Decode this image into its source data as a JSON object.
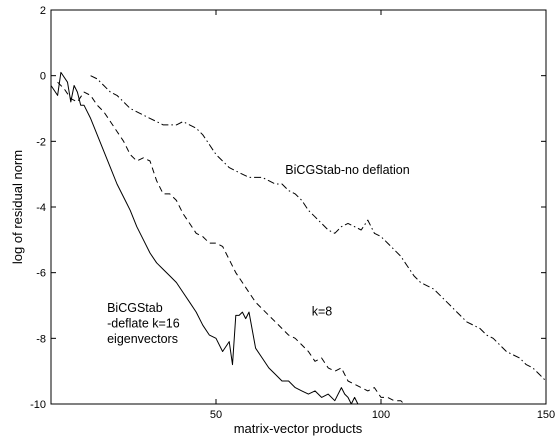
{
  "chart_data": {
    "type": "line",
    "title": "",
    "xlabel": "matrix-vector products",
    "ylabel": "log of residual norm",
    "xlim": [
      0,
      150
    ],
    "ylim": [
      -10,
      2
    ],
    "xticks": [
      "50",
      "100",
      "150"
    ],
    "yticks": [
      "2",
      "0",
      "-2",
      "-4",
      "-6",
      "-8",
      "-10"
    ],
    "grid": false,
    "legend": "none",
    "series": [
      {
        "name": "BiCGStab -deflate k=16 eigenvectors",
        "style": "solid",
        "x": [
          0,
          2,
          3,
          5,
          6,
          7,
          8,
          9,
          10,
          12,
          14,
          16,
          18,
          20,
          22,
          24,
          26,
          28,
          30,
          32,
          34,
          36,
          38,
          40,
          42,
          44,
          46,
          48,
          50,
          52,
          54,
          55,
          56,
          57,
          58,
          59,
          60,
          62,
          64,
          66,
          68,
          70,
          72,
          74,
          76,
          78,
          80,
          82,
          84,
          86,
          88,
          89,
          90,
          91,
          92,
          93
        ],
        "y": [
          -0.3,
          -0.6,
          0.1,
          -0.2,
          -0.8,
          -0.3,
          -0.5,
          -0.9,
          -0.9,
          -1.3,
          -1.8,
          -2.3,
          -2.8,
          -3.3,
          -3.7,
          -4.1,
          -4.6,
          -5.0,
          -5.4,
          -5.7,
          -5.9,
          -6.1,
          -6.3,
          -6.6,
          -6.9,
          -7.2,
          -7.6,
          -7.9,
          -8.0,
          -8.4,
          -8.1,
          -8.8,
          -7.3,
          -7.3,
          -7.2,
          -7.4,
          -7.2,
          -8.3,
          -8.6,
          -8.9,
          -9.1,
          -9.3,
          -9.3,
          -9.5,
          -9.6,
          -9.7,
          -9.6,
          -9.8,
          -9.7,
          -9.9,
          -9.5,
          -9.7,
          -9.8,
          -10.0,
          -9.8,
          -10.0
        ]
      },
      {
        "name": "k=8",
        "style": "dashed",
        "x": [
          2,
          4,
          6,
          8,
          10,
          12,
          14,
          16,
          18,
          20,
          22,
          24,
          26,
          28,
          30,
          32,
          34,
          36,
          38,
          40,
          42,
          44,
          46,
          48,
          50,
          52,
          54,
          56,
          58,
          60,
          62,
          64,
          66,
          68,
          70,
          72,
          74,
          76,
          78,
          80,
          82,
          84,
          86,
          88,
          90,
          92,
          94,
          96,
          98,
          100,
          102,
          104,
          106,
          107
        ],
        "y": [
          -0.2,
          -0.4,
          -0.7,
          -0.8,
          -0.5,
          -0.6,
          -0.9,
          -1.1,
          -1.4,
          -1.7,
          -2.0,
          -2.4,
          -2.6,
          -2.5,
          -2.6,
          -3.2,
          -3.6,
          -3.6,
          -3.8,
          -4.2,
          -4.5,
          -4.8,
          -4.9,
          -5.1,
          -5.1,
          -5.2,
          -5.6,
          -6.0,
          -6.3,
          -6.6,
          -6.9,
          -7.1,
          -7.3,
          -7.5,
          -7.7,
          -7.9,
          -8.0,
          -8.2,
          -8.4,
          -8.7,
          -8.6,
          -8.9,
          -9.0,
          -8.9,
          -9.3,
          -9.4,
          -9.5,
          -9.6,
          -9.5,
          -9.8,
          -9.8,
          -9.9,
          -9.9,
          -10.0
        ]
      },
      {
        "name": "BiCGStab-no deflation",
        "style": "dashdot",
        "x": [
          12,
          14,
          16,
          18,
          20,
          22,
          24,
          26,
          28,
          30,
          32,
          34,
          36,
          38,
          40,
          42,
          44,
          46,
          48,
          50,
          52,
          54,
          56,
          58,
          60,
          62,
          64,
          66,
          68,
          70,
          72,
          74,
          76,
          78,
          80,
          82,
          84,
          86,
          88,
          90,
          92,
          94,
          96,
          98,
          100,
          102,
          104,
          106,
          108,
          110,
          112,
          114,
          116,
          118,
          120,
          122,
          124,
          126,
          128,
          130,
          132,
          134,
          136,
          138,
          140,
          142,
          144,
          146,
          148,
          150
        ],
        "y": [
          0.0,
          -0.1,
          -0.3,
          -0.5,
          -0.6,
          -0.8,
          -1.0,
          -1.1,
          -1.2,
          -1.3,
          -1.4,
          -1.5,
          -1.5,
          -1.5,
          -1.4,
          -1.5,
          -1.6,
          -1.8,
          -2.1,
          -2.4,
          -2.6,
          -2.8,
          -2.9,
          -3.0,
          -3.1,
          -3.1,
          -3.1,
          -3.2,
          -3.3,
          -3.3,
          -3.5,
          -3.6,
          -3.8,
          -4.1,
          -4.3,
          -4.5,
          -4.7,
          -4.8,
          -4.6,
          -4.5,
          -4.6,
          -4.7,
          -4.4,
          -4.8,
          -4.9,
          -5.1,
          -5.3,
          -5.5,
          -5.8,
          -6.1,
          -6.3,
          -6.4,
          -6.5,
          -6.7,
          -6.9,
          -7.1,
          -7.3,
          -7.5,
          -7.6,
          -7.7,
          -7.9,
          -8.0,
          -8.2,
          -8.4,
          -8.5,
          -8.6,
          -8.8,
          -8.9,
          -9.1,
          -9.3
        ]
      }
    ],
    "annotations": [
      {
        "id": "no-deflation",
        "lines": [
          "BiCGStab-no deflation"
        ],
        "x": 71,
        "y": -3.0
      },
      {
        "id": "k8",
        "lines": [
          "k=8"
        ],
        "x": 79,
        "y": -7.3
      },
      {
        "id": "deflate16",
        "lines": [
          "BiCGStab",
          "-deflate k=16",
          "eigenvectors"
        ],
        "x": 17,
        "y": -7.2
      }
    ]
  }
}
